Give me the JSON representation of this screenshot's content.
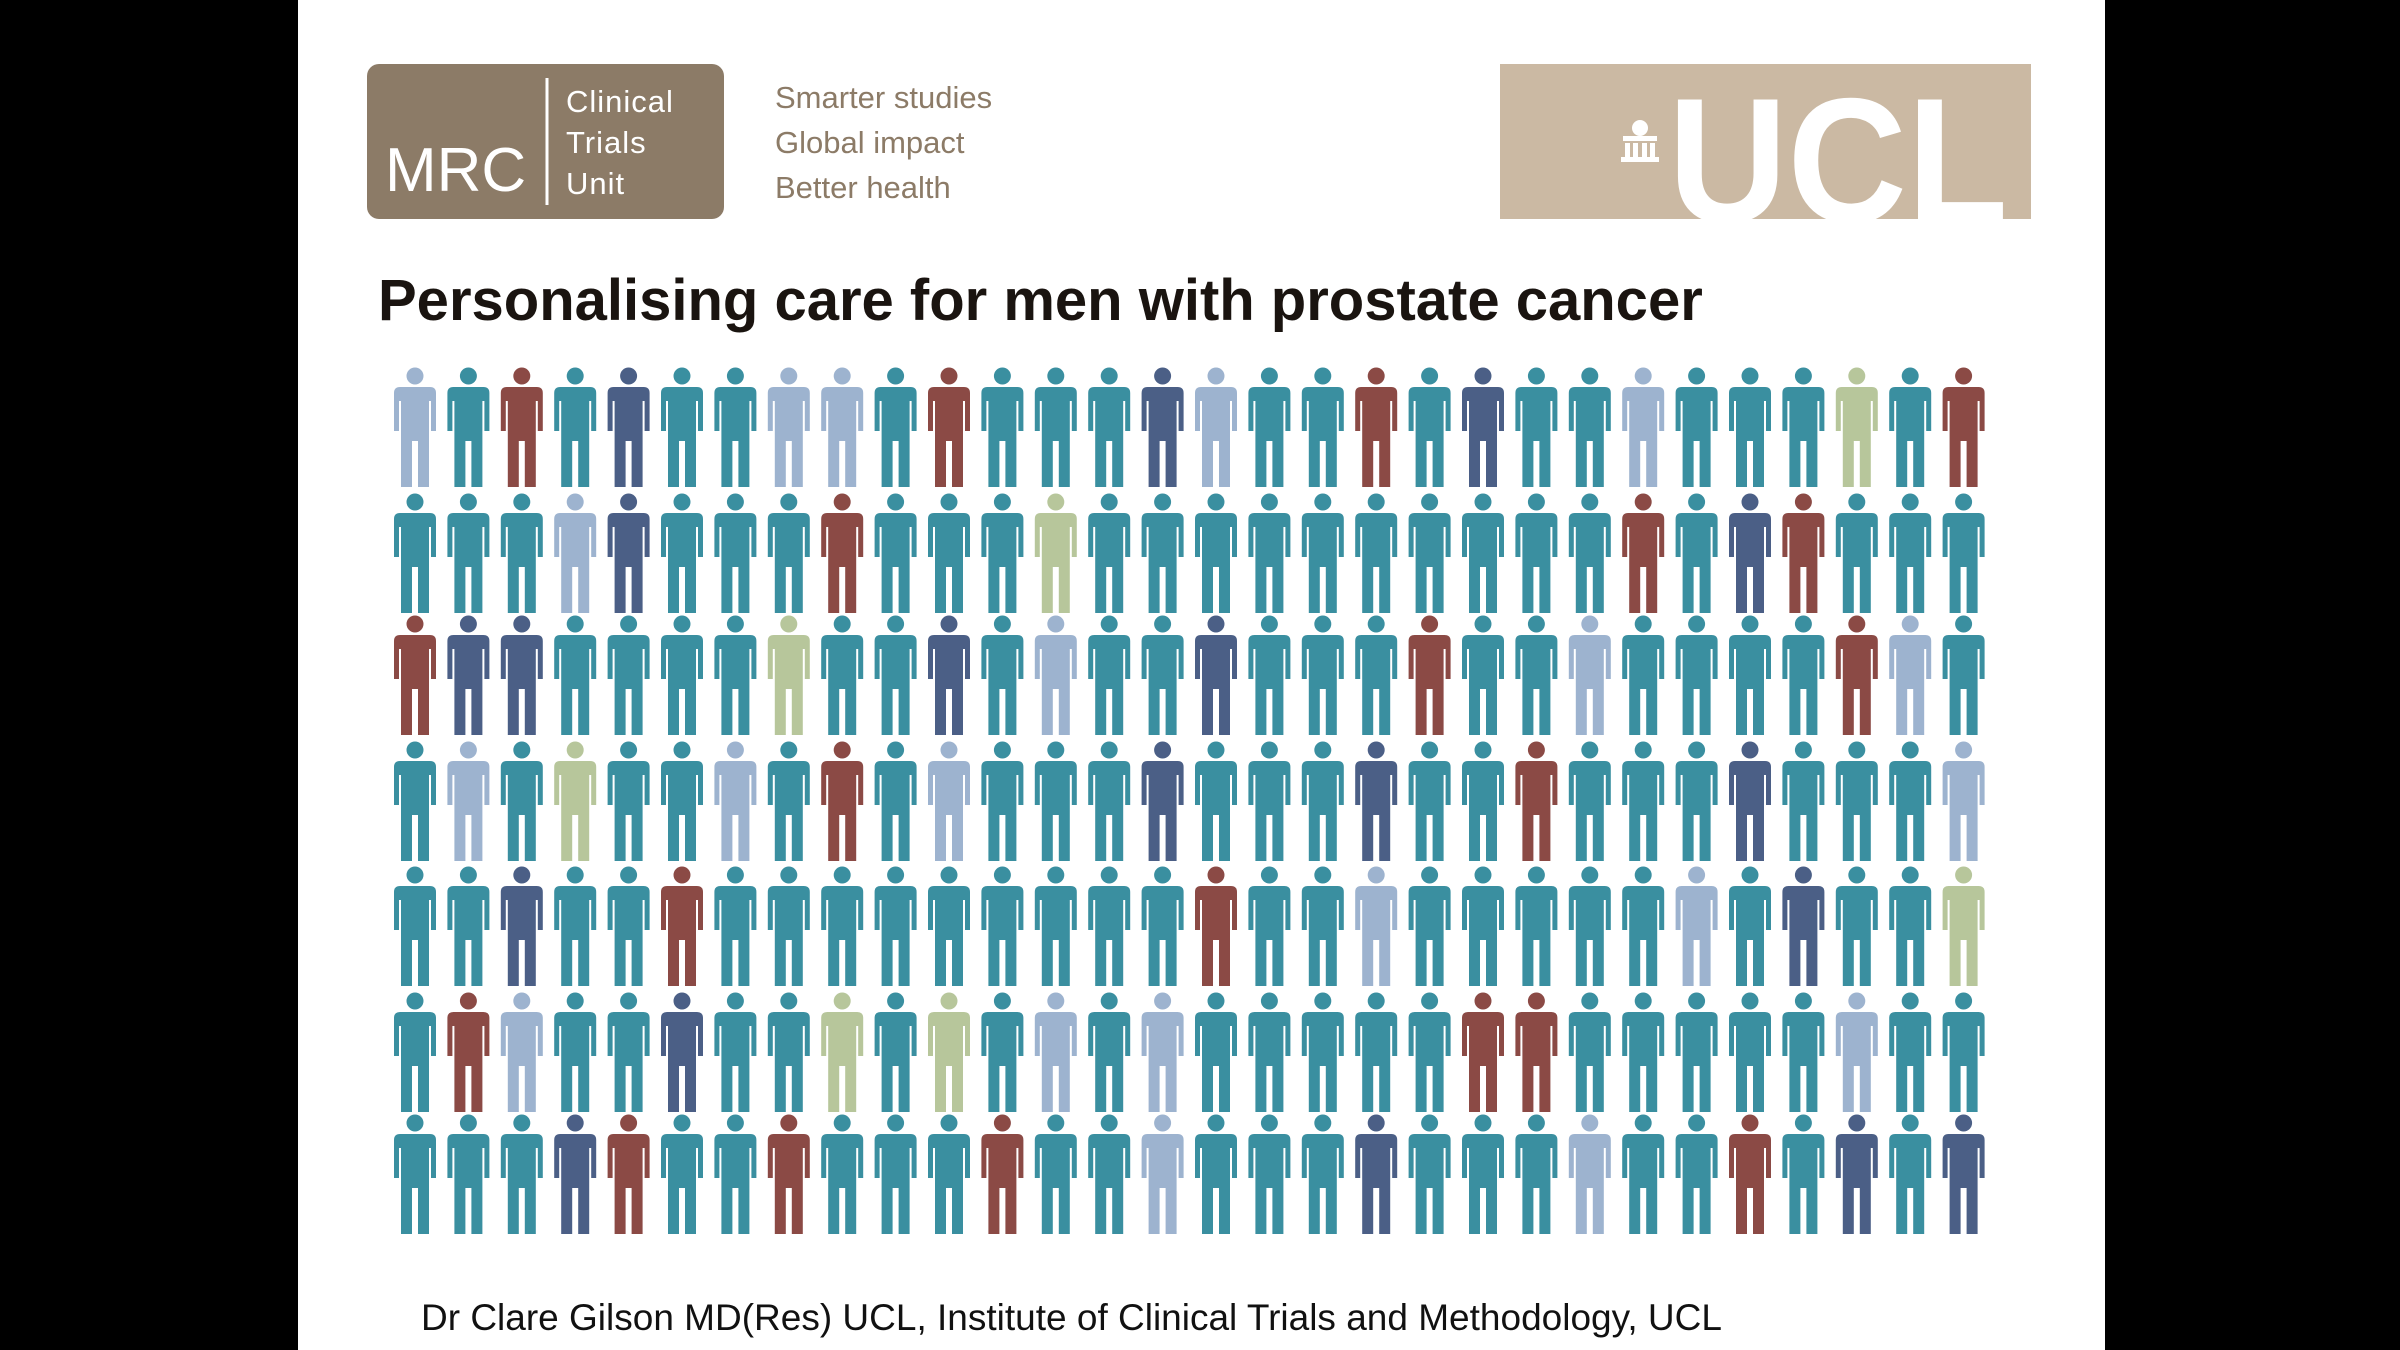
{
  "logo": {
    "name": "MRC",
    "lines": [
      "Clinical",
      "Trials",
      "Unit"
    ]
  },
  "taglines": [
    "Smarter studies",
    "Global impact",
    "Better health"
  ],
  "partner_logo": "UCL",
  "title": "Personalising care for men with prostate cancer",
  "footer": "Dr Clare  Gilson  MD(Res)  UCL,  Institute of Clinical Trials  and  Methodology,  UCL"
}
